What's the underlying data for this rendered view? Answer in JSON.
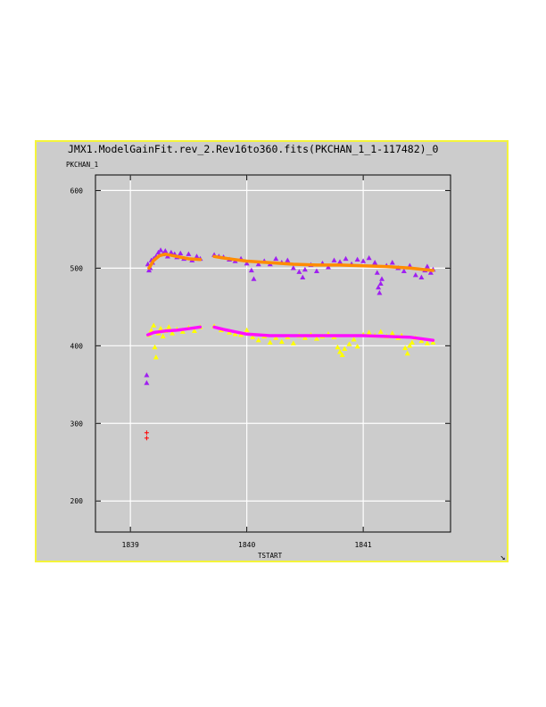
{
  "chart_data": {
    "type": "scatter",
    "title": "JMX1.ModelGainFit.rev_2.Rev16to360.fits(PKCHAN_1_1-117482)_0",
    "ylabel": "PKCHAN_1",
    "xlabel": "TSTART",
    "xlim": [
      1838.7,
      1841.75
    ],
    "ylim": [
      160,
      620
    ],
    "xticks": [
      1839,
      1840,
      1841
    ],
    "yticks": [
      200,
      300,
      400,
      500,
      600
    ],
    "grid": true,
    "series": [
      {
        "color": "#a020f0",
        "marker": "triangle",
        "points": [
          [
            1839.14,
            362
          ],
          [
            1839.14,
            352
          ],
          [
            1839.15,
            505
          ],
          [
            1839.16,
            497
          ],
          [
            1839.17,
            500
          ],
          [
            1839.18,
            510
          ],
          [
            1839.19,
            507
          ],
          [
            1839.2,
            512
          ],
          [
            1839.22,
            515
          ],
          [
            1839.24,
            520
          ],
          [
            1839.26,
            523
          ],
          [
            1839.28,
            518
          ],
          [
            1839.3,
            522
          ],
          [
            1839.32,
            515
          ],
          [
            1839.35,
            520
          ],
          [
            1839.38,
            518
          ],
          [
            1839.4,
            514
          ],
          [
            1839.43,
            519
          ],
          [
            1839.46,
            512
          ],
          [
            1839.5,
            518
          ],
          [
            1839.53,
            510
          ],
          [
            1839.57,
            515
          ],
          [
            1839.6,
            512
          ],
          [
            1839.72,
            517
          ],
          [
            1839.76,
            515
          ],
          [
            1839.8,
            514
          ],
          [
            1839.85,
            511
          ],
          [
            1839.9,
            509
          ],
          [
            1839.95,
            512
          ],
          [
            1840.0,
            506
          ],
          [
            1840.04,
            497
          ],
          [
            1840.06,
            486
          ],
          [
            1840.1,
            505
          ],
          [
            1840.15,
            509
          ],
          [
            1840.2,
            505
          ],
          [
            1840.25,
            512
          ],
          [
            1840.3,
            507
          ],
          [
            1840.35,
            510
          ],
          [
            1840.4,
            500
          ],
          [
            1840.45,
            495
          ],
          [
            1840.48,
            488
          ],
          [
            1840.5,
            498
          ],
          [
            1840.55,
            504
          ],
          [
            1840.6,
            496
          ],
          [
            1840.65,
            506
          ],
          [
            1840.7,
            501
          ],
          [
            1840.75,
            510
          ],
          [
            1840.8,
            508
          ],
          [
            1840.85,
            512
          ],
          [
            1840.9,
            505
          ],
          [
            1840.95,
            511
          ],
          [
            1841.0,
            509
          ],
          [
            1841.05,
            513
          ],
          [
            1841.1,
            507
          ],
          [
            1841.12,
            494
          ],
          [
            1841.13,
            475
          ],
          [
            1841.14,
            468
          ],
          [
            1841.15,
            480
          ],
          [
            1841.16,
            486
          ],
          [
            1841.2,
            503
          ],
          [
            1841.25,
            507
          ],
          [
            1841.3,
            500
          ],
          [
            1841.35,
            496
          ],
          [
            1841.4,
            503
          ],
          [
            1841.45,
            491
          ],
          [
            1841.5,
            488
          ],
          [
            1841.53,
            497
          ],
          [
            1841.55,
            502
          ],
          [
            1841.58,
            494
          ],
          [
            1841.6,
            498
          ]
        ]
      },
      {
        "color": "#ffff00",
        "marker": "triangle",
        "points": [
          [
            1839.16,
            414
          ],
          [
            1839.18,
            420
          ],
          [
            1839.2,
            426
          ],
          [
            1839.21,
            398
          ],
          [
            1839.22,
            385
          ],
          [
            1839.24,
            416
          ],
          [
            1839.26,
            422
          ],
          [
            1839.28,
            412
          ],
          [
            1839.3,
            419
          ],
          [
            1839.33,
            424
          ],
          [
            1839.36,
            416
          ],
          [
            1839.4,
            421
          ],
          [
            1839.45,
            418
          ],
          [
            1839.5,
            423
          ],
          [
            1839.55,
            419
          ],
          [
            1839.6,
            424
          ],
          [
            1839.72,
            425
          ],
          [
            1839.78,
            420
          ],
          [
            1839.85,
            417
          ],
          [
            1839.9,
            415
          ],
          [
            1839.95,
            414
          ],
          [
            1840.0,
            420
          ],
          [
            1840.05,
            411
          ],
          [
            1840.1,
            407
          ],
          [
            1840.15,
            412
          ],
          [
            1840.2,
            404
          ],
          [
            1840.25,
            410
          ],
          [
            1840.3,
            405
          ],
          [
            1840.35,
            411
          ],
          [
            1840.4,
            403
          ],
          [
            1840.45,
            413
          ],
          [
            1840.5,
            410
          ],
          [
            1840.55,
            414
          ],
          [
            1840.6,
            409
          ],
          [
            1840.65,
            412
          ],
          [
            1840.7,
            415
          ],
          [
            1840.75,
            411
          ],
          [
            1840.78,
            398
          ],
          [
            1840.8,
            392
          ],
          [
            1840.82,
            388
          ],
          [
            1840.84,
            396
          ],
          [
            1840.88,
            402
          ],
          [
            1840.92,
            408
          ],
          [
            1840.95,
            399
          ],
          [
            1841.0,
            414
          ],
          [
            1841.05,
            417
          ],
          [
            1841.1,
            413
          ],
          [
            1841.15,
            418
          ],
          [
            1841.2,
            412
          ],
          [
            1841.25,
            416
          ],
          [
            1841.3,
            410
          ],
          [
            1841.33,
            413
          ],
          [
            1841.36,
            397
          ],
          [
            1841.38,
            390
          ],
          [
            1841.4,
            400
          ],
          [
            1841.42,
            404
          ],
          [
            1841.45,
            410
          ],
          [
            1841.5,
            406
          ],
          [
            1841.55,
            403
          ],
          [
            1841.6,
            404
          ]
        ]
      },
      {
        "color": "#ff0000",
        "marker": "plus",
        "points": [
          [
            1839.14,
            288
          ],
          [
            1839.14,
            281
          ]
        ]
      }
    ],
    "fit_lines": [
      {
        "color": "#ff8c00",
        "points": [
          [
            1839.16,
            500
          ],
          [
            1839.2,
            510
          ],
          [
            1839.25,
            516
          ],
          [
            1839.3,
            518
          ],
          [
            1839.4,
            515
          ],
          [
            1839.5,
            512
          ],
          [
            1839.6,
            511
          ],
          null,
          [
            1839.72,
            515
          ],
          [
            1839.8,
            513
          ],
          [
            1839.9,
            511
          ],
          [
            1840.0,
            509
          ],
          [
            1840.2,
            507
          ],
          [
            1840.4,
            505
          ],
          [
            1840.6,
            504
          ],
          [
            1840.8,
            504
          ],
          [
            1841.0,
            503
          ],
          [
            1841.2,
            502
          ],
          [
            1841.4,
            500
          ],
          [
            1841.6,
            497
          ]
        ]
      },
      {
        "color": "#ff10ff",
        "points": [
          [
            1839.15,
            414
          ],
          [
            1839.2,
            417
          ],
          [
            1839.3,
            419
          ],
          [
            1839.4,
            420
          ],
          [
            1839.5,
            422
          ],
          [
            1839.6,
            424
          ],
          null,
          [
            1839.72,
            424
          ],
          [
            1839.8,
            421
          ],
          [
            1839.9,
            418
          ],
          [
            1840.0,
            415
          ],
          [
            1840.2,
            413
          ],
          [
            1840.4,
            413
          ],
          [
            1840.6,
            413
          ],
          [
            1840.8,
            413
          ],
          [
            1841.0,
            413
          ],
          [
            1841.2,
            412
          ],
          [
            1841.4,
            411
          ],
          [
            1841.6,
            407
          ]
        ]
      }
    ]
  }
}
